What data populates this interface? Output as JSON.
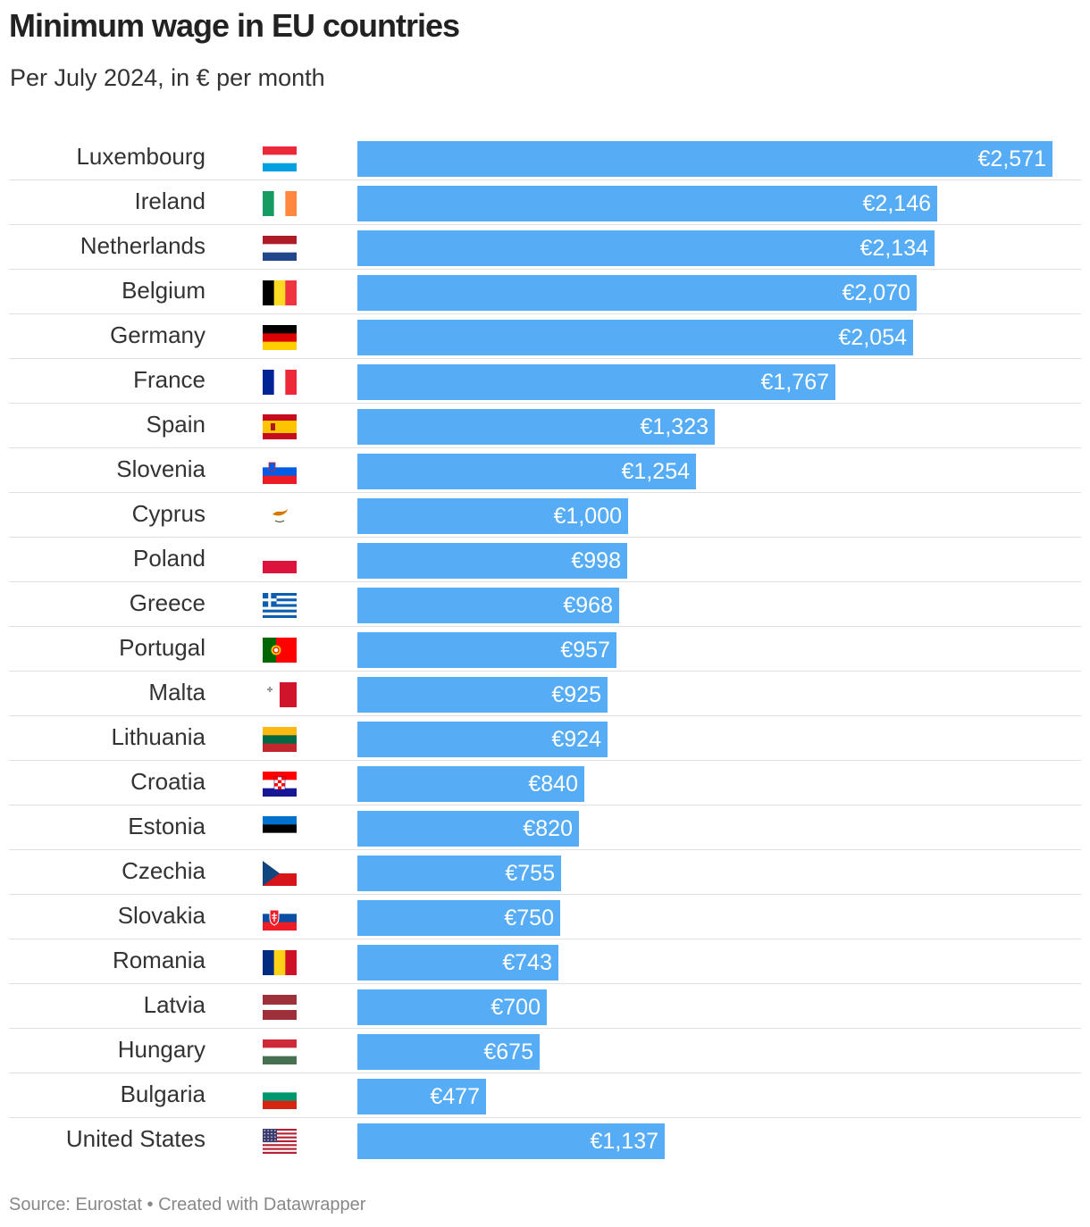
{
  "header": {
    "title": "Minimum wage in EU countries",
    "subtitle": "Per July 2024, in € per month"
  },
  "footer": {
    "text": "Source: Eurostat • Created with Datawrapper"
  },
  "colors": {
    "bar": "#56acf5",
    "bar_label": "#ffffff",
    "divider": "#e0e0e0"
  },
  "chart_data": {
    "type": "bar",
    "orientation": "horizontal",
    "title": "Minimum wage in EU countries",
    "subtitle": "Per July 2024, in € per month",
    "unit": "€ per month",
    "xlim": [
      0,
      2571
    ],
    "grid": false,
    "categories": [
      "Luxembourg",
      "Ireland",
      "Netherlands",
      "Belgium",
      "Germany",
      "France",
      "Spain",
      "Slovenia",
      "Cyprus",
      "Poland",
      "Greece",
      "Portugal",
      "Malta",
      "Lithuania",
      "Croatia",
      "Estonia",
      "Czechia",
      "Slovakia",
      "Romania",
      "Latvia",
      "Hungary",
      "Bulgaria",
      "United States"
    ],
    "values": [
      2571,
      2146,
      2134,
      2070,
      2054,
      1767,
      1323,
      1254,
      1000,
      998,
      968,
      957,
      925,
      924,
      840,
      820,
      755,
      750,
      743,
      700,
      675,
      477,
      1137
    ],
    "labels": [
      "€2,571",
      "€2,146",
      "€2,134",
      "€2,070",
      "€2,054",
      "€1,767",
      "€1,323",
      "€1,254",
      "€1,000",
      "€998",
      "€968",
      "€957",
      "€925",
      "€924",
      "€840",
      "€820",
      "€755",
      "€750",
      "€743",
      "€700",
      "€675",
      "€477",
      "€1,137"
    ],
    "flags": [
      "luxembourg-flag-icon",
      "ireland-flag-icon",
      "netherlands-flag-icon",
      "belgium-flag-icon",
      "germany-flag-icon",
      "france-flag-icon",
      "spain-flag-icon",
      "slovenia-flag-icon",
      "cyprus-flag-icon",
      "poland-flag-icon",
      "greece-flag-icon",
      "portugal-flag-icon",
      "malta-flag-icon",
      "lithuania-flag-icon",
      "croatia-flag-icon",
      "estonia-flag-icon",
      "czechia-flag-icon",
      "slovakia-flag-icon",
      "romania-flag-icon",
      "latvia-flag-icon",
      "hungary-flag-icon",
      "bulgaria-flag-icon",
      "united-states-flag-icon"
    ]
  }
}
